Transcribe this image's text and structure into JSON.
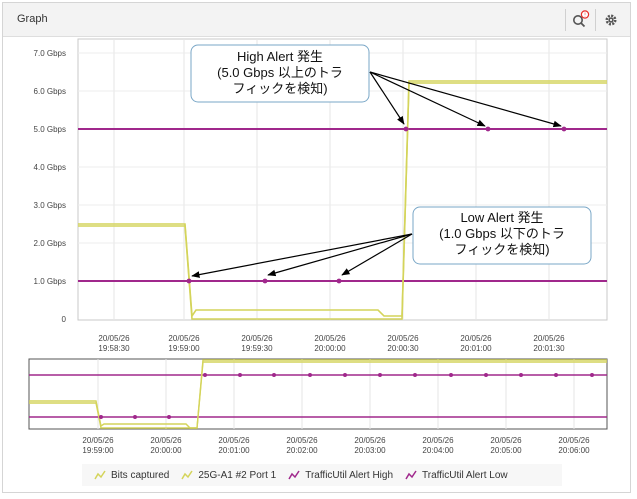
{
  "header": {
    "title": "Graph",
    "search_icon": "search-icon",
    "settings_icon": "gear-icon",
    "notification_color": "#e8312c"
  },
  "colors": {
    "bits": "#d4d45a",
    "alert": "#a0288c"
  },
  "main_chart": {
    "y_ticks": [
      "0",
      "1.0 Gbps",
      "2.0 Gbps",
      "3.0 Gbps",
      "4.0 Gbps",
      "5.0 Gbps",
      "6.0 Gbps",
      "7.0 Gbps"
    ],
    "x_ticks": [
      [
        "20/05/26",
        "19:58:30"
      ],
      [
        "20/05/26",
        "19:59:00"
      ],
      [
        "20/05/26",
        "19:59:30"
      ],
      [
        "20/05/26",
        "20:00:00"
      ],
      [
        "20/05/26",
        "20:00:30"
      ],
      [
        "20/05/26",
        "20:01:00"
      ],
      [
        "20/05/26",
        "20:01:30"
      ]
    ]
  },
  "overview_chart": {
    "x_ticks": [
      [
        "20/05/26",
        "19:59:00"
      ],
      [
        "20/05/26",
        "20:00:00"
      ],
      [
        "20/05/26",
        "20:01:00"
      ],
      [
        "20/05/26",
        "20:02:00"
      ],
      [
        "20/05/26",
        "20:03:00"
      ],
      [
        "20/05/26",
        "20:04:00"
      ],
      [
        "20/05/26",
        "20:05:00"
      ],
      [
        "20/05/26",
        "20:06:00"
      ]
    ]
  },
  "callouts": {
    "high": [
      "High Alert 発生",
      "(5.0 Gbps 以上のトラ",
      "フィックを検知)"
    ],
    "low": [
      "Low Alert 発生",
      "(1.0 Gbps 以下のトラ",
      "フィックを検知)"
    ]
  },
  "legend": [
    {
      "label": "Bits captured",
      "color": "#d4d45a"
    },
    {
      "label": "25G-A1 #2 Port 1",
      "color": "#d4d45a"
    },
    {
      "label": "TrafficUtil Alert High",
      "color": "#a0288c"
    },
    {
      "label": "TrafficUtil Alert Low",
      "color": "#a0288c"
    }
  ]
}
